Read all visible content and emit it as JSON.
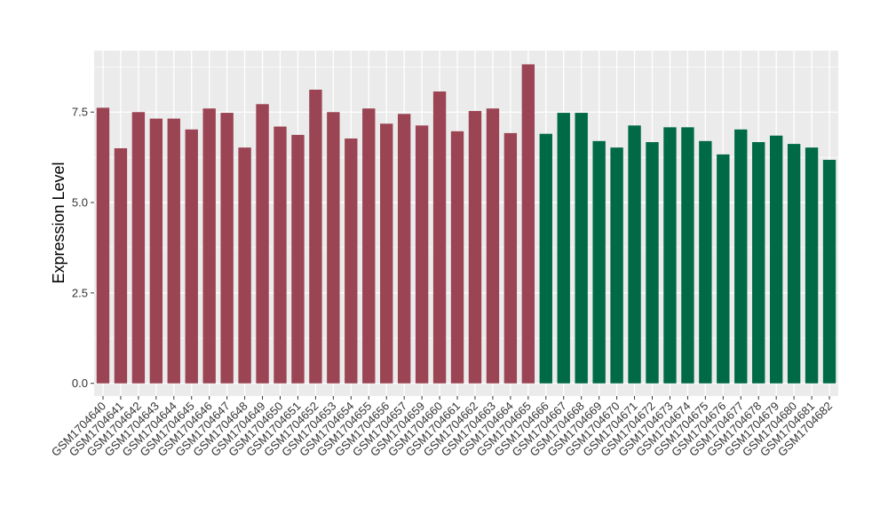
{
  "chart_data": {
    "type": "bar",
    "ylabel": "Expression Level",
    "xlabel": "",
    "ylim": [
      -0.35,
      9.2
    ],
    "yticks": [
      0.0,
      2.5,
      5.0,
      7.5
    ],
    "ytick_labels": [
      "0.0",
      "2.5",
      "5.0",
      "7.5"
    ],
    "grid": true,
    "panel_background": "#EBEBEB",
    "grid_color": "#FFFFFF",
    "categories": [
      "GSM1704640",
      "GSM1704641",
      "GSM1704642",
      "GSM1704643",
      "GSM1704644",
      "GSM1704645",
      "GSM1704646",
      "GSM1704647",
      "GSM1704648",
      "GSM1704649",
      "GSM1704650",
      "GSM1704651",
      "GSM1704652",
      "GSM1704653",
      "GSM1704654",
      "GSM1704655",
      "GSM1704656",
      "GSM1704657",
      "GSM1704659",
      "GSM1704660",
      "GSM1704661",
      "GSM1704662",
      "GSM1704663",
      "GSM1704664",
      "GSM1704665",
      "GSM1704666",
      "GSM1704667",
      "GSM1704668",
      "GSM1704669",
      "GSM1704670",
      "GSM1704671",
      "GSM1704672",
      "GSM1704673",
      "GSM1704674",
      "GSM1704675",
      "GSM1704676",
      "GSM1704677",
      "GSM1704678",
      "GSM1704679",
      "GSM1704680",
      "GSM1704681",
      "GSM1704682"
    ],
    "values": [
      7.62,
      6.5,
      7.5,
      7.32,
      7.32,
      7.02,
      7.6,
      7.48,
      6.52,
      7.72,
      7.1,
      6.87,
      8.12,
      7.5,
      6.77,
      7.6,
      7.18,
      7.45,
      7.13,
      8.07,
      6.97,
      7.53,
      7.6,
      6.92,
      8.82,
      6.9,
      7.48,
      7.48,
      6.7,
      6.52,
      7.13,
      6.67,
      7.08,
      7.08,
      6.7,
      6.33,
      7.02,
      6.67,
      6.85,
      6.62,
      6.52,
      6.18
    ],
    "series_colors": {
      "group_a": "#9B4453",
      "group_b": "#006A47"
    },
    "group_a_count": 25
  }
}
